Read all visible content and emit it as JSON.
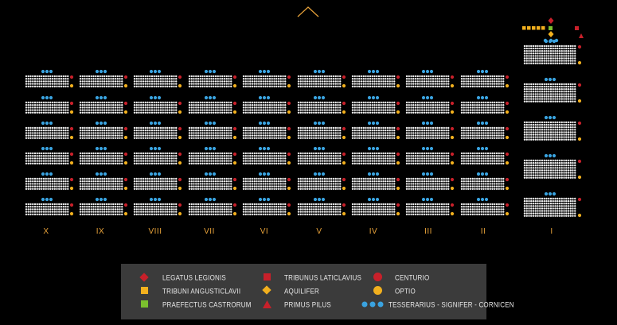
{
  "colors": {
    "background": "#000000",
    "soldier": "#f2f2f2",
    "blue": "#3aa3e0",
    "red": "#c8202a",
    "orange": "#f2b01e",
    "green": "#7bbf2e",
    "label": "#e9a33a",
    "legend_bg": "#3b3b3b"
  },
  "cohort_labels": [
    "X",
    "IX",
    "VIII",
    "VII",
    "VI",
    "V",
    "IV",
    "III",
    "II",
    "I"
  ],
  "top_marker_icon": "chevron-up-icon",
  "legend": {
    "items": [
      {
        "icon": "red-diamond-icon",
        "label": "LEGATUS LEGIONIS"
      },
      {
        "icon": "orange-square-icon",
        "label": "TRIBUNI ANGUSTICLAVII"
      },
      {
        "icon": "green-square-icon",
        "label": "PRAEFECTUS CASTRORUM"
      },
      {
        "icon": "red-square-icon",
        "label": "TRIBUNUS LATICLAVIUS"
      },
      {
        "icon": "orange-diamond-icon",
        "label": "AQUILIFER"
      },
      {
        "icon": "red-triangle-icon",
        "label": "PRIMUS PILUS"
      },
      {
        "icon": "red-circle-icon",
        "label": "CENTURIO"
      },
      {
        "icon": "orange-circle-icon",
        "label": "OPTIO"
      },
      {
        "icon": "blue-dots-icon",
        "label": "TESSERARIUS - SIGNIFER - CORNICEN"
      }
    ]
  }
}
